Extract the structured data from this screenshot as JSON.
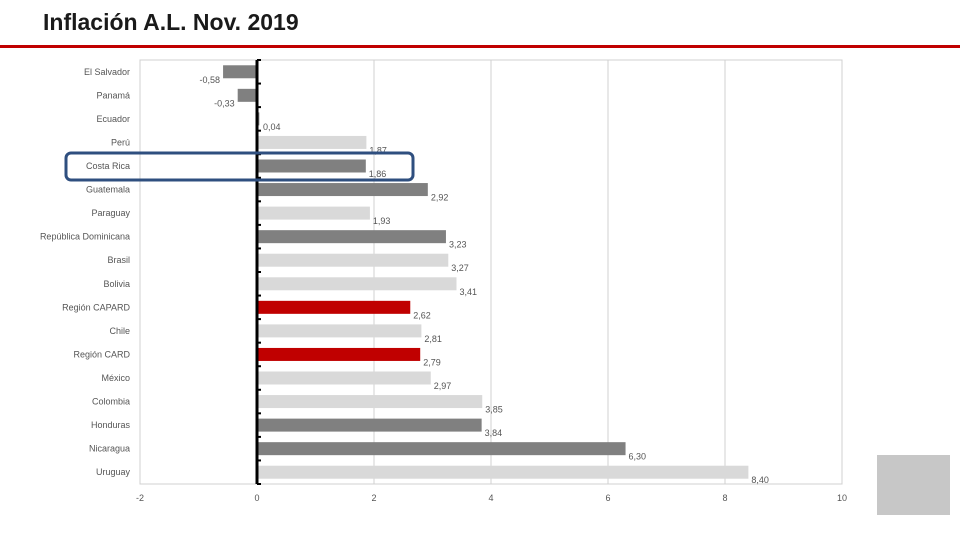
{
  "header": {
    "title": "Inflación A.L. Nov. 2019"
  },
  "chart_data": {
    "type": "bar",
    "orientation": "horizontal",
    "title": "",
    "xlabel": "",
    "ylabel": "",
    "xlim": [
      -2,
      10
    ],
    "xticks": [
      -2,
      0,
      2,
      4,
      6,
      8,
      10
    ],
    "grid": true,
    "categories": [
      "El Salvador",
      "Panamá",
      "Ecuador",
      "Perú",
      "Costa Rica",
      "Guatemala",
      "Paraguay",
      "República Dominicana",
      "Brasil",
      "Bolivia",
      "Región CAPARD",
      "Chile",
      "Región CARD",
      "México",
      "Colombia",
      "Honduras",
      "Nicaragua",
      "Uruguay"
    ],
    "values": [
      -0.58,
      -0.33,
      0.04,
      1.87,
      1.86,
      2.92,
      1.93,
      3.23,
      3.27,
      3.41,
      2.62,
      2.81,
      2.79,
      2.97,
      3.85,
      3.84,
      6.3,
      8.4
    ],
    "value_labels": [
      "-0,58",
      "-0,33",
      "0,04",
      "1,87",
      "1,86",
      "2,92",
      "1,93",
      "3,23",
      "3,27",
      "3,41",
      "2,62",
      "2,81",
      "2,79",
      "2,97",
      "3,85",
      "3,84",
      "6,30",
      "8,40"
    ],
    "bar_colors": [
      "#808080",
      "#808080",
      "#808080",
      "#d9d9d9",
      "#808080",
      "#808080",
      "#d9d9d9",
      "#808080",
      "#d9d9d9",
      "#d9d9d9",
      "#c00000",
      "#d9d9d9",
      "#c00000",
      "#d9d9d9",
      "#d9d9d9",
      "#808080",
      "#808080",
      "#d9d9d9"
    ],
    "highlight_category": "Costa Rica",
    "highlight_color": "#2f4f7f"
  }
}
